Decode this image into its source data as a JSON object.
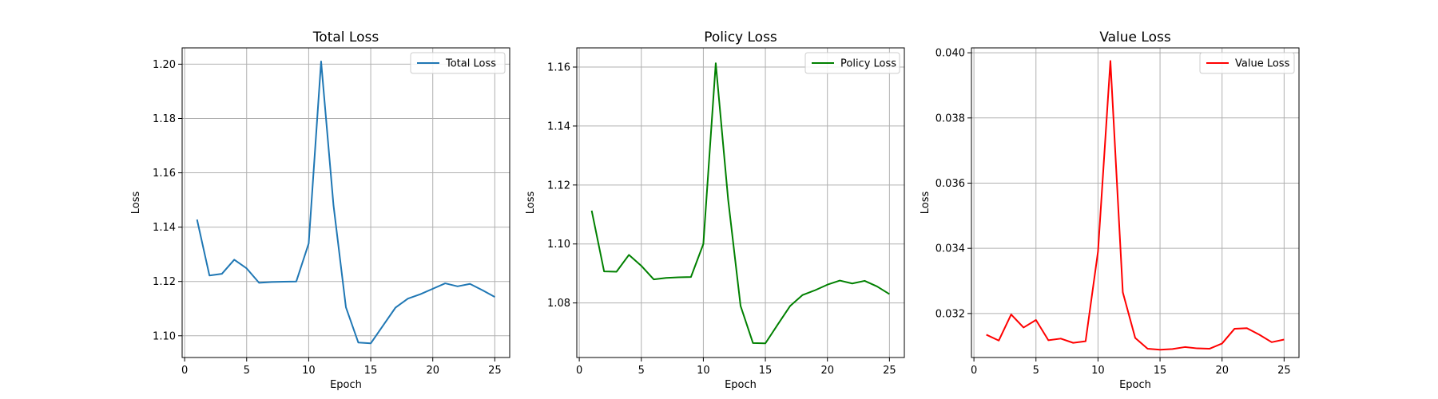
{
  "chart_data": [
    {
      "type": "line",
      "title": "Total Loss",
      "xlabel": "Epoch",
      "ylabel": "Loss",
      "xlim": [
        -0.2,
        26.2
      ],
      "ylim": [
        1.092,
        1.206
      ],
      "xticks": [
        0,
        5,
        10,
        15,
        20,
        25
      ],
      "xtick_labels": [
        "0",
        "5",
        "10",
        "15",
        "20",
        "25"
      ],
      "yticks": [
        1.1,
        1.12,
        1.14,
        1.16,
        1.18,
        1.2
      ],
      "ytick_labels": [
        "1.10",
        "1.12",
        "1.14",
        "1.16",
        "1.18",
        "1.20"
      ],
      "grid": true,
      "legend_position": "top-right",
      "x": [
        1,
        2,
        3,
        4,
        5,
        6,
        7,
        8,
        9,
        10,
        11,
        12,
        13,
        14,
        15,
        16,
        17,
        18,
        19,
        20,
        21,
        22,
        23,
        24,
        25
      ],
      "series": [
        {
          "name": "Total Loss",
          "color": "#1f77b4",
          "values": [
            1.1428,
            1.1222,
            1.1228,
            1.128,
            1.1248,
            1.1195,
            1.1198,
            1.1199,
            1.12,
            1.134,
            1.201,
            1.148,
            1.1105,
            1.0975,
            1.0972,
            1.1038,
            1.1104,
            1.1137,
            1.1153,
            1.1173,
            1.1193,
            1.1182,
            1.1191,
            1.1168,
            1.1143
          ]
        }
      ]
    },
    {
      "type": "line",
      "title": "Policy Loss",
      "xlabel": "Epoch",
      "ylabel": "Loss",
      "xlim": [
        -0.2,
        26.2
      ],
      "ylim": [
        1.0615,
        1.1665
      ],
      "xticks": [
        0,
        5,
        10,
        15,
        20,
        25
      ],
      "xtick_labels": [
        "0",
        "5",
        "10",
        "15",
        "20",
        "25"
      ],
      "yticks": [
        1.08,
        1.1,
        1.12,
        1.14,
        1.16
      ],
      "ytick_labels": [
        "1.08",
        "1.10",
        "1.12",
        "1.14",
        "1.16"
      ],
      "grid": true,
      "legend_position": "top-right",
      "x": [
        1,
        2,
        3,
        4,
        5,
        6,
        7,
        8,
        9,
        10,
        11,
        12,
        13,
        14,
        15,
        16,
        17,
        18,
        19,
        20,
        21,
        22,
        23,
        24,
        25
      ],
      "series": [
        {
          "name": "Policy Loss",
          "color": "#008000",
          "values": [
            1.1113,
            1.0907,
            1.0906,
            1.0963,
            1.0926,
            1.088,
            1.0885,
            1.0887,
            1.0888,
            1.1,
            1.1613,
            1.115,
            1.079,
            1.0664,
            1.0663,
            1.0727,
            1.079,
            1.0827,
            1.0843,
            1.0862,
            1.0876,
            1.0866,
            1.0875,
            1.0856,
            1.083
          ]
        }
      ]
    },
    {
      "type": "line",
      "title": "Value Loss",
      "xlabel": "Epoch",
      "ylabel": "Loss",
      "xlim": [
        -0.2,
        26.2
      ],
      "ylim": [
        0.03065,
        0.04015
      ],
      "xticks": [
        0,
        5,
        10,
        15,
        20,
        25
      ],
      "xtick_labels": [
        "0",
        "5",
        "10",
        "15",
        "20",
        "25"
      ],
      "yticks": [
        0.032,
        0.034,
        0.036,
        0.038,
        0.04
      ],
      "ytick_labels": [
        "0.032",
        "0.034",
        "0.036",
        "0.038",
        "0.040"
      ],
      "grid": true,
      "legend_position": "top-right",
      "x": [
        1,
        2,
        3,
        4,
        5,
        6,
        7,
        8,
        9,
        10,
        11,
        12,
        13,
        14,
        15,
        16,
        17,
        18,
        19,
        20,
        21,
        22,
        23,
        24,
        25
      ],
      "series": [
        {
          "name": "Value Loss",
          "color": "#ff0000",
          "values": [
            0.03135,
            0.03117,
            0.03197,
            0.03157,
            0.0318,
            0.03118,
            0.03123,
            0.0311,
            0.03115,
            0.0339,
            0.03975,
            0.03265,
            0.03125,
            0.03092,
            0.03089,
            0.03091,
            0.03097,
            0.03093,
            0.03092,
            0.03108,
            0.03153,
            0.03155,
            0.03135,
            0.03112,
            0.0312
          ]
        }
      ]
    }
  ]
}
